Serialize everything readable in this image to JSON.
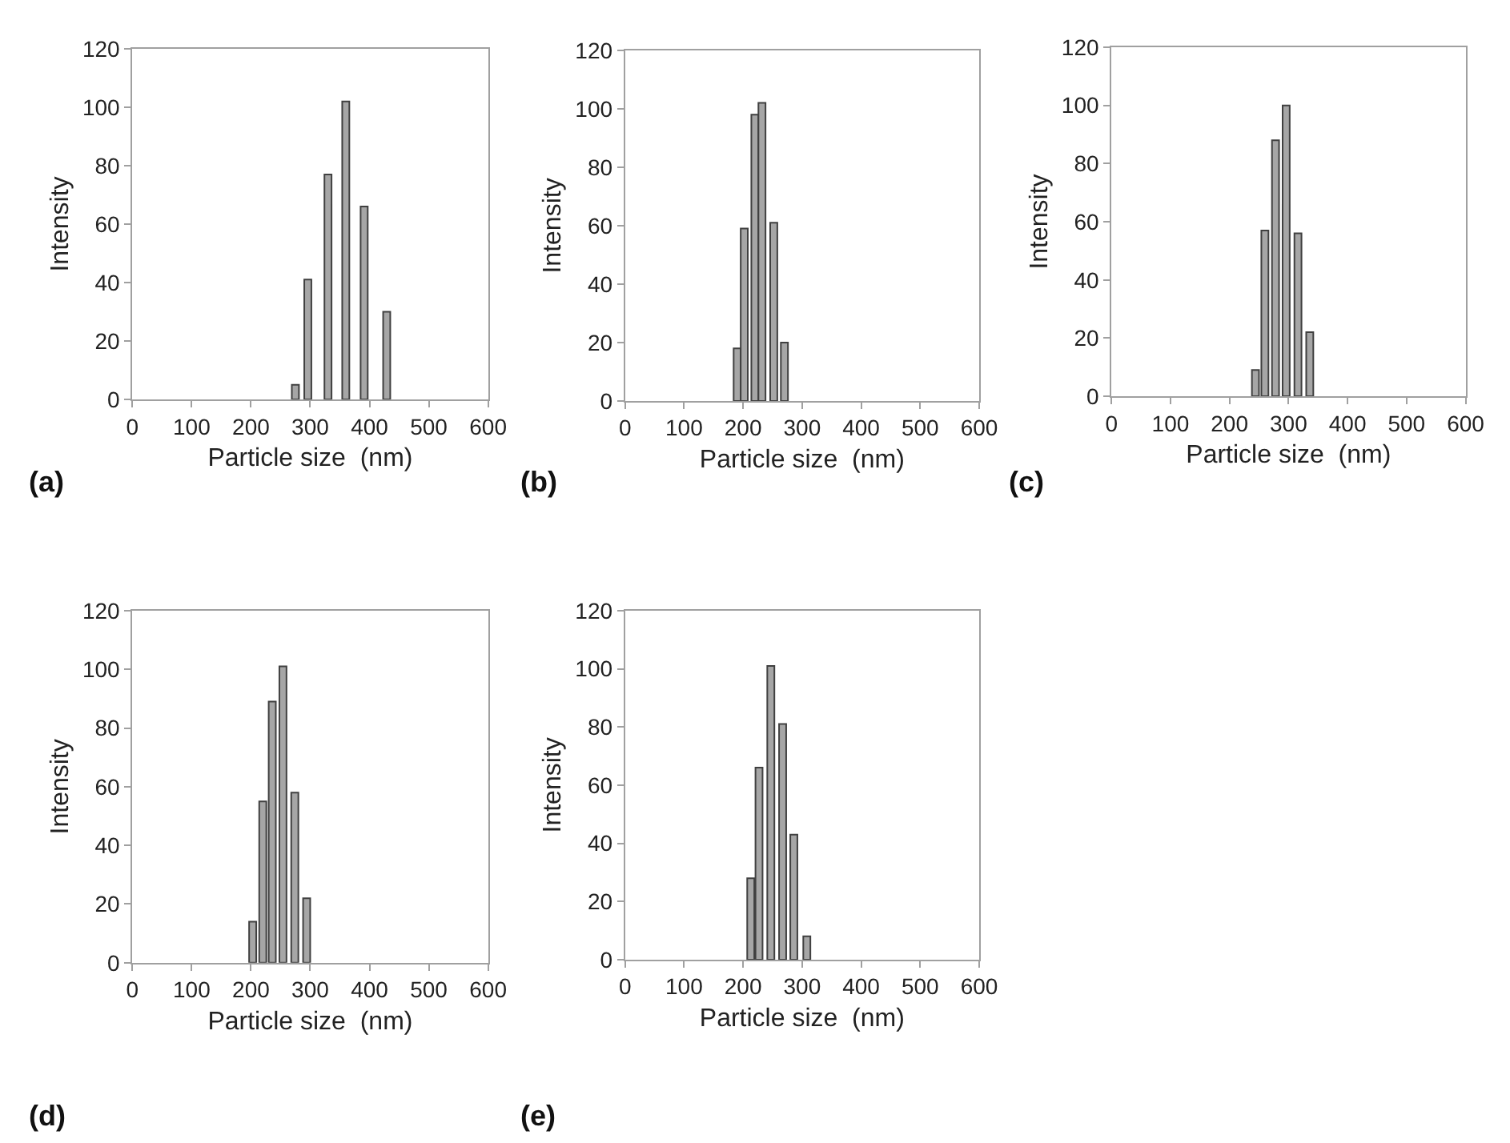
{
  "chart_data": [
    {
      "type": "bar",
      "x": [
        275,
        296,
        330,
        360,
        391,
        429
      ],
      "values": [
        5,
        41,
        77,
        102,
        66,
        30
      ],
      "color": "#a6a6a6",
      "xlabel": "Particle size  (nm)",
      "ylabel": "Intensity",
      "xlim": [
        0,
        600
      ],
      "xticks": [
        0,
        100,
        200,
        300,
        400,
        500,
        600
      ],
      "ylim": [
        0,
        120
      ],
      "yticks": [
        0,
        20,
        40,
        60,
        80,
        100,
        120
      ],
      "grid": false,
      "annotations": [
        "(a)"
      ]
    },
    {
      "type": "bar",
      "x": [
        190,
        202,
        220,
        232,
        252,
        270
      ],
      "values": [
        18,
        59,
        98,
        102,
        61,
        20
      ],
      "color": "#a6a6a6",
      "xlabel": "Particle size  (nm)",
      "ylabel": "Intensity",
      "xlim": [
        0,
        600
      ],
      "xticks": [
        0,
        100,
        200,
        300,
        400,
        500,
        600
      ],
      "ylim": [
        0,
        120
      ],
      "yticks": [
        0,
        20,
        40,
        60,
        80,
        100,
        120
      ],
      "grid": false,
      "annotations": [
        "(b)"
      ]
    },
    {
      "type": "bar",
      "x": [
        244,
        260,
        278,
        296,
        316,
        336
      ],
      "values": [
        9,
        57,
        88,
        100,
        56,
        22
      ],
      "color": "#a6a6a6",
      "xlabel": "Particle size  (nm)",
      "ylabel": "Intensity",
      "xlim": [
        0,
        600
      ],
      "xticks": [
        0,
        100,
        200,
        300,
        400,
        500,
        600
      ],
      "ylim": [
        0,
        120
      ],
      "yticks": [
        0,
        20,
        40,
        60,
        80,
        100,
        120
      ],
      "grid": false,
      "annotations": [
        "(c)"
      ]
    },
    {
      "type": "bar",
      "x": [
        203,
        220,
        236,
        254,
        274,
        294
      ],
      "values": [
        14,
        55,
        89,
        101,
        58,
        22
      ],
      "color": "#a6a6a6",
      "xlabel": "Particle size  (nm)",
      "ylabel": "Intensity",
      "xlim": [
        0,
        600
      ],
      "xticks": [
        0,
        100,
        200,
        300,
        400,
        500,
        600
      ],
      "ylim": [
        0,
        120
      ],
      "yticks": [
        0,
        20,
        40,
        60,
        80,
        100,
        120
      ],
      "grid": false,
      "annotations": [
        "(d)"
      ]
    },
    {
      "type": "bar",
      "x": [
        213,
        227,
        247,
        267,
        286,
        308
      ],
      "values": [
        28,
        66,
        101,
        81,
        43,
        8
      ],
      "color": "#a6a6a6",
      "xlabel": "Particle size  (nm)",
      "ylabel": "Intensity",
      "xlim": [
        0,
        600
      ],
      "xticks": [
        0,
        100,
        200,
        300,
        400,
        500,
        600
      ],
      "ylim": [
        0,
        120
      ],
      "yticks": [
        0,
        20,
        40,
        60,
        80,
        100,
        120
      ],
      "grid": false,
      "annotations": [
        "(e)"
      ]
    }
  ]
}
